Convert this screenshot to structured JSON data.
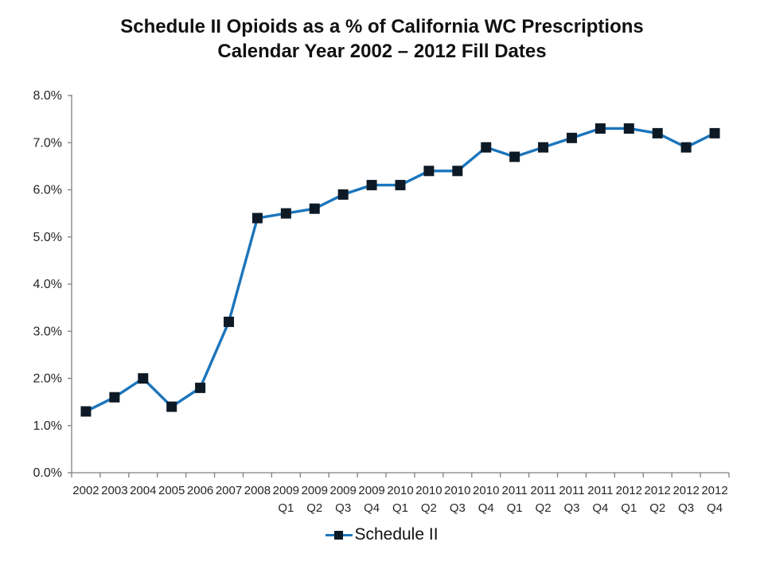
{
  "title": {
    "line1": "Schedule II Opioids as a % of California WC Prescriptions",
    "line2": "Calendar Year 2002 – 2012 Fill Dates"
  },
  "legend": {
    "label": "Schedule II"
  },
  "chart_data": {
    "type": "line",
    "title": "Schedule II Opioids as a % of California WC Prescriptions Calendar Year 2002 – 2012 Fill Dates",
    "categories": [
      "2002",
      "2003",
      "2004",
      "2005",
      "2006",
      "2007",
      "2008",
      "2009 Q1",
      "2009 Q2",
      "2009 Q3",
      "2009 Q4",
      "2010 Q1",
      "2010 Q2",
      "2010 Q3",
      "2010 Q4",
      "2011 Q1",
      "2011 Q2",
      "2011 Q3",
      "2011 Q4",
      "2012 Q1",
      "2012 Q2",
      "2012 Q3",
      "2012 Q4"
    ],
    "series": [
      {
        "name": "Schedule II",
        "values": [
          1.3,
          1.6,
          2.0,
          1.4,
          1.8,
          3.2,
          5.4,
          5.5,
          5.6,
          5.9,
          6.1,
          6.1,
          6.4,
          6.4,
          6.9,
          6.7,
          6.9,
          7.1,
          7.3,
          7.3,
          7.2,
          6.9,
          7.2
        ]
      }
    ],
    "xlabel": "",
    "ylabel": "",
    "ylim": [
      0,
      8
    ],
    "ytick_labels": [
      "0.0%",
      "1.0%",
      "2.0%",
      "3.0%",
      "4.0%",
      "5.0%",
      "6.0%",
      "7.0%",
      "8.0%"
    ],
    "grid": false,
    "legend_position": "bottom",
    "colors": {
      "line": "#1b75bc",
      "marker": "#0d1a26",
      "axis": "#808080",
      "tick_text": "#262626",
      "title_text": "#111111"
    }
  }
}
